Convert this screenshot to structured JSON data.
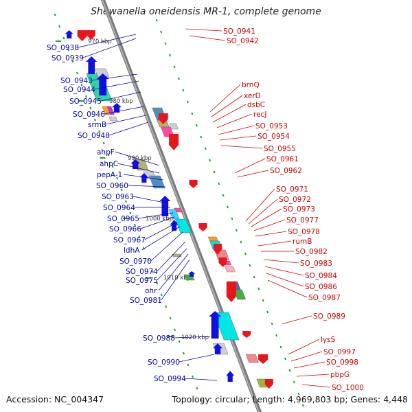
{
  "title": "Shewanella oneidensis MR-1, complete genome",
  "footer": {
    "accession": "Accession: NC_004347",
    "topology": "Topology: circular; Length: 4,969,803 bp; Genes: 4,448"
  },
  "colors": {
    "forward_gene": "#e8151b",
    "reverse_gene": "#1010e0",
    "forward_label": "#cc0000",
    "reverse_label": "#0000aa",
    "backbone": "#909090",
    "tick": "#22a022"
  },
  "scale_labels": [
    "970 kbp",
    "980 kbp",
    "990 kbp",
    "1000 kbp",
    "1010 kbp",
    "1020 kbp"
  ],
  "left_labels": [
    "SO_0938",
    "SO_0939",
    "SO_0943",
    "SO_0944",
    "SO_0945",
    "SO_0946",
    "srmB",
    "SO_0948",
    "ahpF",
    "ahpC",
    "pepA-1",
    "SO_0960",
    "SO_0963",
    "SO_0964",
    "SO_0965",
    "SO_0966",
    "SO_0967",
    "ldhA",
    "SO_0970",
    "SO_0974",
    "SO_0975",
    "ohr",
    "SO_0981",
    "SO_0988",
    "SO_0990",
    "SO_0994"
  ],
  "right_labels": [
    "SO_0941",
    "SO_0942",
    "brnQ",
    "xerD",
    "dsbC",
    "recJ",
    "SO_0953",
    "SO_0954",
    "SO_0955",
    "SO_0961",
    "SO_0962",
    "SO_0971",
    "SO_0972",
    "SO_0973",
    "SO_0977",
    "SO_0978",
    "rumB",
    "SO_0982",
    "SO_0983",
    "SO_0984",
    "SO_0986",
    "SO_0987",
    "SO_0989",
    "lysS",
    "SO_0997",
    "SO_0998",
    "pbpG",
    "SO_1000"
  ]
}
